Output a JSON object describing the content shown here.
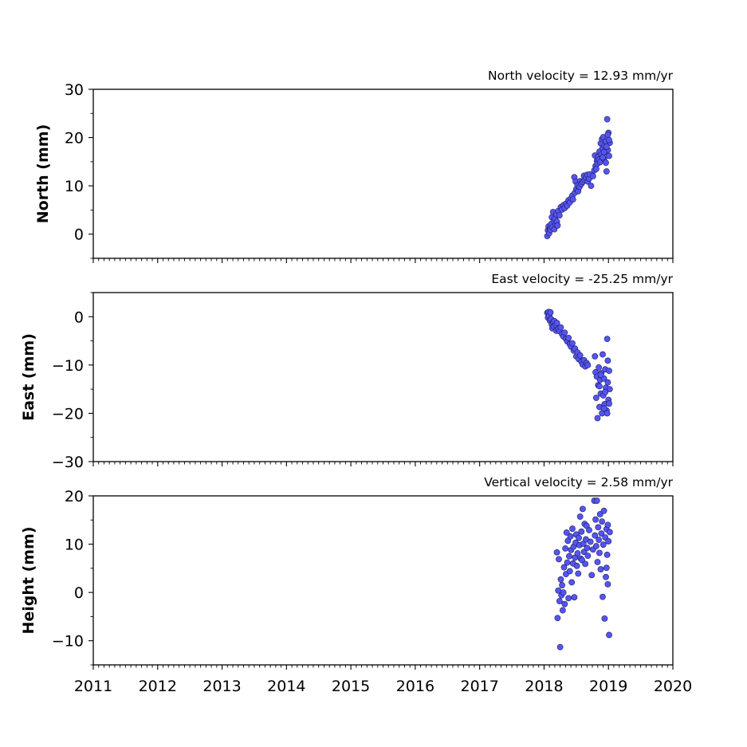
{
  "chart_data": [
    {
      "type": "scatter",
      "panel": "north",
      "title": "North velocity = 12.93 mm/yr",
      "ylabel": "North (mm)",
      "xlim": [
        2011,
        2020
      ],
      "ylim": [
        -5,
        30
      ],
      "yticks": [
        0,
        10,
        20,
        30
      ],
      "xticks": [
        2011,
        2012,
        2013,
        2014,
        2015,
        2016,
        2017,
        2018,
        2019,
        2020
      ],
      "xtick_labels_visible": false,
      "marker_color": "#5555ee",
      "points": [
        [
          2018.05,
          -0.4
        ],
        [
          2018.06,
          0.8
        ],
        [
          2018.07,
          1.6
        ],
        [
          2018.08,
          0.2
        ],
        [
          2018.09,
          1.2
        ],
        [
          2018.1,
          0.9
        ],
        [
          2018.11,
          2.1
        ],
        [
          2018.12,
          3.5
        ],
        [
          2018.13,
          1.4
        ],
        [
          2018.14,
          4.6
        ],
        [
          2018.15,
          2.8
        ],
        [
          2018.16,
          1.0
        ],
        [
          2018.17,
          3.2
        ],
        [
          2018.18,
          2.0
        ],
        [
          2018.19,
          4.1
        ],
        [
          2018.2,
          2.6
        ],
        [
          2018.21,
          1.8
        ],
        [
          2018.22,
          4.8
        ],
        [
          2018.24,
          3.9
        ],
        [
          2018.26,
          5.6
        ],
        [
          2018.28,
          5.1
        ],
        [
          2018.3,
          6.0
        ],
        [
          2018.32,
          5.4
        ],
        [
          2018.34,
          6.3
        ],
        [
          2018.36,
          5.9
        ],
        [
          2018.38,
          7.0
        ],
        [
          2018.4,
          6.6
        ],
        [
          2018.42,
          7.4
        ],
        [
          2018.44,
          8.0
        ],
        [
          2018.45,
          7.2
        ],
        [
          2018.47,
          11.8
        ],
        [
          2018.48,
          8.6
        ],
        [
          2018.49,
          10.9
        ],
        [
          2018.5,
          9.3
        ],
        [
          2018.52,
          10.1
        ],
        [
          2018.53,
          8.9
        ],
        [
          2018.55,
          9.8
        ],
        [
          2018.56,
          11.0
        ],
        [
          2018.58,
          10.4
        ],
        [
          2018.6,
          10.8
        ],
        [
          2018.62,
          12.1
        ],
        [
          2018.63,
          11.2
        ],
        [
          2018.65,
          11.7
        ],
        [
          2018.67,
          12.3
        ],
        [
          2018.68,
          10.9
        ],
        [
          2018.7,
          11.5
        ],
        [
          2018.71,
          12.4
        ],
        [
          2018.73,
          10.0
        ],
        [
          2018.76,
          12.0
        ],
        [
          2018.78,
          13.2
        ],
        [
          2018.79,
          16.3
        ],
        [
          2018.8,
          14.1
        ],
        [
          2018.81,
          13.5
        ],
        [
          2018.82,
          15.2
        ],
        [
          2018.83,
          14.6
        ],
        [
          2018.84,
          16.0
        ],
        [
          2018.85,
          15.4
        ],
        [
          2018.86,
          17.1
        ],
        [
          2018.87,
          14.9
        ],
        [
          2018.88,
          18.8
        ],
        [
          2018.89,
          16.5
        ],
        [
          2018.9,
          19.7
        ],
        [
          2018.91,
          17.8
        ],
        [
          2018.92,
          20.1
        ],
        [
          2018.93,
          15.6
        ],
        [
          2018.94,
          18.3
        ],
        [
          2018.95,
          16.9
        ],
        [
          2018.96,
          19.2
        ],
        [
          2018.97,
          13.0
        ],
        [
          2018.98,
          23.8
        ],
        [
          2018.99,
          17.4
        ],
        [
          2019.0,
          21.0
        ],
        [
          2019.01,
          16.2
        ],
        [
          2019.02,
          18.9
        ],
        [
          2018.96,
          14.8
        ],
        [
          2018.99,
          20.6
        ],
        [
          2019.01,
          19.5
        ],
        [
          2018.93,
          17.0
        ],
        [
          2018.91,
          15.9
        ],
        [
          2018.97,
          18.1
        ]
      ]
    },
    {
      "type": "scatter",
      "panel": "east",
      "title": "East velocity = -25.25 mm/yr",
      "ylabel": "East (mm)",
      "xlim": [
        2011,
        2020
      ],
      "ylim": [
        -30,
        5
      ],
      "yticks": [
        -30,
        -20,
        -10,
        0
      ],
      "ytick_labels": [
        "−30",
        "−20",
        "−10",
        "0"
      ],
      "xticks": [
        2011,
        2012,
        2013,
        2014,
        2015,
        2016,
        2017,
        2018,
        2019,
        2020
      ],
      "xtick_labels_visible": false,
      "marker_color": "#5555ee",
      "points": [
        [
          2018.05,
          0.8
        ],
        [
          2018.06,
          -0.2
        ],
        [
          2018.07,
          1.0
        ],
        [
          2018.08,
          0.3
        ],
        [
          2018.09,
          -0.8
        ],
        [
          2018.1,
          0.9
        ],
        [
          2018.11,
          -0.5
        ],
        [
          2018.12,
          -1.6
        ],
        [
          2018.13,
          -2.4
        ],
        [
          2018.14,
          -1.1
        ],
        [
          2018.15,
          -2.0
        ],
        [
          2018.16,
          -0.9
        ],
        [
          2018.18,
          -1.7
        ],
        [
          2018.19,
          -2.9
        ],
        [
          2018.2,
          -1.3
        ],
        [
          2018.22,
          -2.6
        ],
        [
          2018.24,
          -3.0
        ],
        [
          2018.26,
          -2.2
        ],
        [
          2018.28,
          -3.6
        ],
        [
          2018.3,
          -4.1
        ],
        [
          2018.32,
          -3.3
        ],
        [
          2018.34,
          -4.6
        ],
        [
          2018.36,
          -5.1
        ],
        [
          2018.38,
          -4.4
        ],
        [
          2018.4,
          -5.7
        ],
        [
          2018.42,
          -6.2
        ],
        [
          2018.44,
          -5.5
        ],
        [
          2018.46,
          -7.0
        ],
        [
          2018.48,
          -6.6
        ],
        [
          2018.5,
          -8.2
        ],
        [
          2018.52,
          -7.4
        ],
        [
          2018.54,
          -8.8
        ],
        [
          2018.56,
          -8.0
        ],
        [
          2018.58,
          -9.3
        ],
        [
          2018.6,
          -9.9
        ],
        [
          2018.62,
          -9.0
        ],
        [
          2018.64,
          -10.3
        ],
        [
          2018.66,
          -9.6
        ],
        [
          2018.68,
          -10.0
        ],
        [
          2018.79,
          -8.2
        ],
        [
          2018.8,
          -11.5
        ],
        [
          2018.81,
          -16.8
        ],
        [
          2018.82,
          -12.4
        ],
        [
          2018.83,
          -21.0
        ],
        [
          2018.84,
          -14.2
        ],
        [
          2018.85,
          -10.5
        ],
        [
          2018.86,
          -18.7
        ],
        [
          2018.87,
          -13.1
        ],
        [
          2018.88,
          -15.9
        ],
        [
          2018.89,
          -11.7
        ],
        [
          2018.9,
          -20.0
        ],
        [
          2018.91,
          -7.8
        ],
        [
          2018.92,
          -16.3
        ],
        [
          2018.93,
          -12.8
        ],
        [
          2018.94,
          -18.1
        ],
        [
          2018.95,
          -10.9
        ],
        [
          2018.96,
          -14.7
        ],
        [
          2018.97,
          -19.4
        ],
        [
          2018.98,
          -4.6
        ],
        [
          2018.99,
          -13.6
        ],
        [
          2019.0,
          -17.2
        ],
        [
          2019.01,
          -11.2
        ],
        [
          2019.02,
          -15.0
        ],
        [
          2018.98,
          -20.0
        ],
        [
          2018.99,
          -9.1
        ],
        [
          2019.01,
          -18.0
        ],
        [
          2018.95,
          -15.6
        ],
        [
          2018.93,
          -19.0
        ],
        [
          2018.88,
          -12.0
        ],
        [
          2018.86,
          -14.4
        ]
      ]
    },
    {
      "type": "scatter",
      "panel": "vertical",
      "title": "Vertical velocity = 2.58 mm/yr",
      "ylabel": "Height (mm)",
      "xlim": [
        2011,
        2020
      ],
      "ylim": [
        -15,
        20
      ],
      "yticks": [
        -10,
        0,
        10,
        20
      ],
      "ytick_labels": [
        "−10",
        "0",
        "10",
        "20"
      ],
      "xticks": [
        2011,
        2012,
        2013,
        2014,
        2015,
        2016,
        2017,
        2018,
        2019,
        2020
      ],
      "xtick_labels": [
        "2011",
        "2012",
        "2013",
        "2014",
        "2015",
        "2016",
        "2017",
        "2018",
        "2019",
        "2020"
      ],
      "xtick_labels_visible": true,
      "marker_color": "#5555ee",
      "points": [
        [
          2018.2,
          8.3
        ],
        [
          2018.21,
          -5.3
        ],
        [
          2018.22,
          0.4
        ],
        [
          2018.23,
          6.9
        ],
        [
          2018.24,
          -1.8
        ],
        [
          2018.25,
          -11.3
        ],
        [
          2018.26,
          2.7
        ],
        [
          2018.27,
          -0.6
        ],
        [
          2018.28,
          1.5
        ],
        [
          2018.29,
          -3.7
        ],
        [
          2018.3,
          0.0
        ],
        [
          2018.31,
          5.2
        ],
        [
          2018.32,
          -2.4
        ],
        [
          2018.33,
          9.1
        ],
        [
          2018.34,
          3.8
        ],
        [
          2018.35,
          12.4
        ],
        [
          2018.36,
          6.2
        ],
        [
          2018.37,
          10.7
        ],
        [
          2018.38,
          -1.2
        ],
        [
          2018.39,
          7.5
        ],
        [
          2018.4,
          4.4
        ],
        [
          2018.41,
          11.6
        ],
        [
          2018.42,
          8.8
        ],
        [
          2018.43,
          2.1
        ],
        [
          2018.44,
          13.2
        ],
        [
          2018.45,
          6.0
        ],
        [
          2018.46,
          9.5
        ],
        [
          2018.47,
          -1.0
        ],
        [
          2018.48,
          7.2
        ],
        [
          2018.49,
          10.3
        ],
        [
          2018.5,
          12.0
        ],
        [
          2018.51,
          5.5
        ],
        [
          2018.52,
          8.1
        ],
        [
          2018.53,
          3.9
        ],
        [
          2018.54,
          11.3
        ],
        [
          2018.55,
          9.8
        ],
        [
          2018.56,
          15.7
        ],
        [
          2018.57,
          7.0
        ],
        [
          2018.58,
          12.6
        ],
        [
          2018.59,
          6.7
        ],
        [
          2018.6,
          17.3
        ],
        [
          2018.61,
          10.1
        ],
        [
          2018.62,
          8.4
        ],
        [
          2018.63,
          14.2
        ],
        [
          2018.64,
          5.9
        ],
        [
          2018.65,
          11.0
        ],
        [
          2018.66,
          13.8
        ],
        [
          2018.67,
          9.2
        ],
        [
          2018.68,
          7.6
        ],
        [
          2018.7,
          12.9
        ],
        [
          2018.72,
          10.5
        ],
        [
          2018.74,
          3.6
        ],
        [
          2018.76,
          8.9
        ],
        [
          2018.78,
          19.0
        ],
        [
          2018.79,
          11.8
        ],
        [
          2018.8,
          15.1
        ],
        [
          2018.81,
          9.6
        ],
        [
          2018.82,
          19.0
        ],
        [
          2018.83,
          6.3
        ],
        [
          2018.84,
          13.5
        ],
        [
          2018.85,
          10.9
        ],
        [
          2018.86,
          8.2
        ],
        [
          2018.87,
          16.2
        ],
        [
          2018.88,
          4.8
        ],
        [
          2018.89,
          12.2
        ],
        [
          2018.9,
          14.7
        ],
        [
          2018.91,
          -0.9
        ],
        [
          2018.92,
          9.9
        ],
        [
          2018.93,
          16.9
        ],
        [
          2018.94,
          -5.4
        ],
        [
          2018.95,
          11.4
        ],
        [
          2018.96,
          3.2
        ],
        [
          2018.97,
          13.1
        ],
        [
          2018.98,
          7.8
        ],
        [
          2018.99,
          1.7
        ],
        [
          2019.0,
          10.6
        ],
        [
          2019.01,
          -8.8
        ],
        [
          2019.02,
          12.5
        ],
        [
          2018.97,
          5.1
        ],
        [
          2018.99,
          14.0
        ]
      ]
    }
  ]
}
